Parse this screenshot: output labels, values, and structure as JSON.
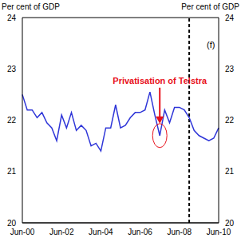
{
  "chart_data": {
    "type": "line",
    "ylabel": "Per cent of GDP",
    "y2label": "Per cent of GDP",
    "categories": [
      "Jun-00",
      null,
      null,
      null,
      null,
      null,
      null,
      null,
      "Jun-02",
      null,
      null,
      null,
      null,
      null,
      null,
      null,
      "Jun-04",
      null,
      null,
      null,
      null,
      null,
      null,
      null,
      "Jun-06",
      null,
      null,
      null,
      null,
      null,
      null,
      null,
      "Jun-08",
      null,
      null,
      null,
      null,
      null,
      null,
      null,
      "Jun-10"
    ],
    "values": [
      22.5,
      22.2,
      22.2,
      22.05,
      22.15,
      21.95,
      21.85,
      21.6,
      22.1,
      21.85,
      22.15,
      21.8,
      21.9,
      21.8,
      21.5,
      21.55,
      21.4,
      21.85,
      21.85,
      22.3,
      21.85,
      21.9,
      22.05,
      22.15,
      22.15,
      22.2,
      22.55,
      22.1,
      21.7,
      22.2,
      21.95,
      22.25,
      22.25,
      22.2,
      22.05,
      21.8,
      21.7,
      21.65,
      21.6,
      21.65,
      21.85
    ],
    "color": "#2f36d8",
    "ylim": [
      20,
      24
    ],
    "yticks": [
      20,
      21,
      22,
      23,
      24
    ],
    "y2lim": [
      20,
      24
    ],
    "y2ticks": [
      20,
      21,
      22,
      23,
      24
    ],
    "grid": true,
    "forecast": {
      "x": 34,
      "label": "(f)"
    },
    "annotations": [
      {
        "text": "Privatisation of Telstra",
        "x": 28,
        "y": 21.7,
        "color": "#e8101a"
      }
    ]
  }
}
